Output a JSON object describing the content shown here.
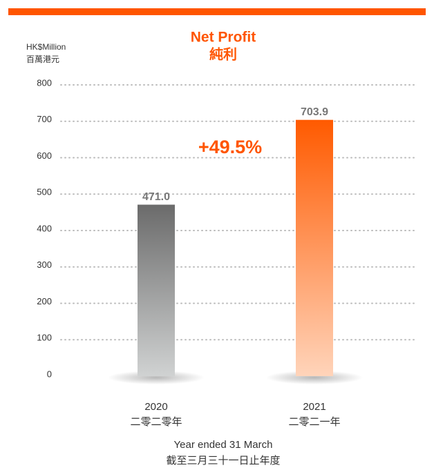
{
  "chart_data": {
    "type": "bar",
    "title": "Net Profit",
    "title_zh": "純利",
    "ylabel": "HK$Million",
    "ylabel_zh": "百萬港元",
    "xlabel": "Year ended 31 March",
    "xlabel_zh": "截至三月三十一日止年度",
    "categories": [
      "2020",
      "2021"
    ],
    "categories_zh": [
      "二零二零年",
      "二零二一年"
    ],
    "values": [
      471.0,
      703.9
    ],
    "value_labels": [
      "471.0",
      "703.9"
    ],
    "colors": [
      "#6b6b6b",
      "#ff5a00"
    ],
    "gradient_end": [
      "#d0d2d2",
      "#ffd4ba"
    ],
    "annotation": "+49.5%",
    "ylim": [
      0,
      800
    ],
    "yticks": [
      0,
      100,
      200,
      300,
      400,
      500,
      600,
      700,
      800
    ],
    "grid": true
  }
}
